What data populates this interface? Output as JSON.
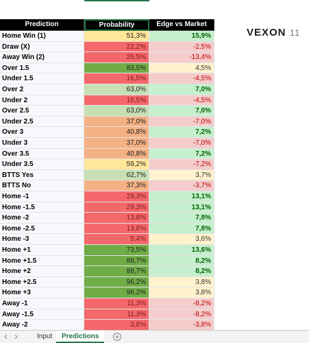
{
  "logo": {
    "name": "VEXON",
    "number": "11"
  },
  "table": {
    "header": [
      "Prediction",
      "Probability",
      "Edge vs Market"
    ],
    "rows": [
      {
        "prediction": "Home Win (1)",
        "probability": "51,3%",
        "edge": "15,9%",
        "probability_color": "#ffe699",
        "edge_color": "#c6efce"
      },
      {
        "prediction": "Draw (X)",
        "probability": "22,2%",
        "edge": "-2,5%",
        "probability_color": "#f4676a",
        "edge_color": "#f4cccc"
      },
      {
        "prediction": "Away Win (2)",
        "probability": "26,5%",
        "edge": "-13,4%",
        "probability_color": "#f4676a",
        "edge_color": "#f4cccc"
      },
      {
        "prediction": "Over 1.5",
        "probability": "83,5%",
        "edge": "4,5%",
        "probability_color": "#70ad47",
        "edge_color": "#fff2cc"
      },
      {
        "prediction": "Under 1.5",
        "probability": "16,5%",
        "edge": "-4,5%",
        "probability_color": "#f4676a",
        "edge_color": "#f4cccc"
      },
      {
        "prediction": "Over 2",
        "probability": "63,0%",
        "edge": "7,0%",
        "probability_color": "#c6e0b4",
        "edge_color": "#c6efce"
      },
      {
        "prediction": "Under 2",
        "probability": "16,5%",
        "edge": "-4,5%",
        "probability_color": "#f4676a",
        "edge_color": "#f4cccc"
      },
      {
        "prediction": "Over 2.5",
        "probability": "63,0%",
        "edge": "7,0%",
        "probability_color": "#c6e0b4",
        "edge_color": "#c6efce"
      },
      {
        "prediction": "Under 2.5",
        "probability": "37,0%",
        "edge": "-7,0%",
        "probability_color": "#f4b183",
        "edge_color": "#f4cccc"
      },
      {
        "prediction": "Over 3",
        "probability": "40,8%",
        "edge": "7,2%",
        "probability_color": "#f4b183",
        "edge_color": "#c6efce"
      },
      {
        "prediction": "Under 3",
        "probability": "37,0%",
        "edge": "-7,0%",
        "probability_color": "#f4b183",
        "edge_color": "#f4cccc"
      },
      {
        "prediction": "Over 3.5",
        "probability": "40,8%",
        "edge": "7,2%",
        "probability_color": "#f4b183",
        "edge_color": "#c6efce"
      },
      {
        "prediction": "Under 3.5",
        "probability": "59,2%",
        "edge": "-7,2%",
        "probability_color": "#ffe699",
        "edge_color": "#f4cccc"
      },
      {
        "prediction": "BTTS Yes",
        "probability": "62,7%",
        "edge": "3,7%",
        "probability_color": "#c6e0b4",
        "edge_color": "#fff2cc"
      },
      {
        "prediction": "BTTS No",
        "probability": "37,3%",
        "edge": "-3,7%",
        "probability_color": "#f4b183",
        "edge_color": "#f4cccc"
      },
      {
        "prediction": "Home -1",
        "probability": "29,3%",
        "edge": "13,1%",
        "probability_color": "#f4676a",
        "edge_color": "#c6efce"
      },
      {
        "prediction": "Home -1.5",
        "probability": "29,3%",
        "edge": "13,1%",
        "probability_color": "#f4676a",
        "edge_color": "#c6efce"
      },
      {
        "prediction": "Home -2",
        "probability": "13,8%",
        "edge": "7,8%",
        "probability_color": "#f4676a",
        "edge_color": "#c6efce"
      },
      {
        "prediction": "Home -2.5",
        "probability": "13,8%",
        "edge": "7,8%",
        "probability_color": "#f4676a",
        "edge_color": "#c6efce"
      },
      {
        "prediction": "Home -3",
        "probability": "5,4%",
        "edge": "3,6%",
        "probability_color": "#f4676a",
        "edge_color": "#fff2cc"
      },
      {
        "prediction": "Home +1",
        "probability": "73,5%",
        "edge": "13,6%",
        "probability_color": "#70ad47",
        "edge_color": "#c6efce"
      },
      {
        "prediction": "Home +1.5",
        "probability": "88,7%",
        "edge": "8,2%",
        "probability_color": "#70ad47",
        "edge_color": "#c6efce"
      },
      {
        "prediction": "Home +2",
        "probability": "88,7%",
        "edge": "8,2%",
        "probability_color": "#70ad47",
        "edge_color": "#c6efce"
      },
      {
        "prediction": "Home +2.5",
        "probability": "96,2%",
        "edge": "3,8%",
        "probability_color": "#70ad47",
        "edge_color": "#fff2cc"
      },
      {
        "prediction": "Home +3",
        "probability": "96,2%",
        "edge": "3,8%",
        "probability_color": "#70ad47",
        "edge_color": "#fff2cc"
      },
      {
        "prediction": "Away -1",
        "probability": "11,3%",
        "edge": "-8,2%",
        "probability_color": "#f4676a",
        "edge_color": "#f4cccc"
      },
      {
        "prediction": "Away -1.5",
        "probability": "11,3%",
        "edge": "-8,2%",
        "probability_color": "#f4676a",
        "edge_color": "#f4cccc"
      },
      {
        "prediction": "Away -2",
        "probability": "3,8%",
        "edge": "-3,8%",
        "probability_color": "#f4676a",
        "edge_color": "#f4cccc"
      }
    ]
  },
  "tabs": [
    "Input",
    "Predictions"
  ]
}
